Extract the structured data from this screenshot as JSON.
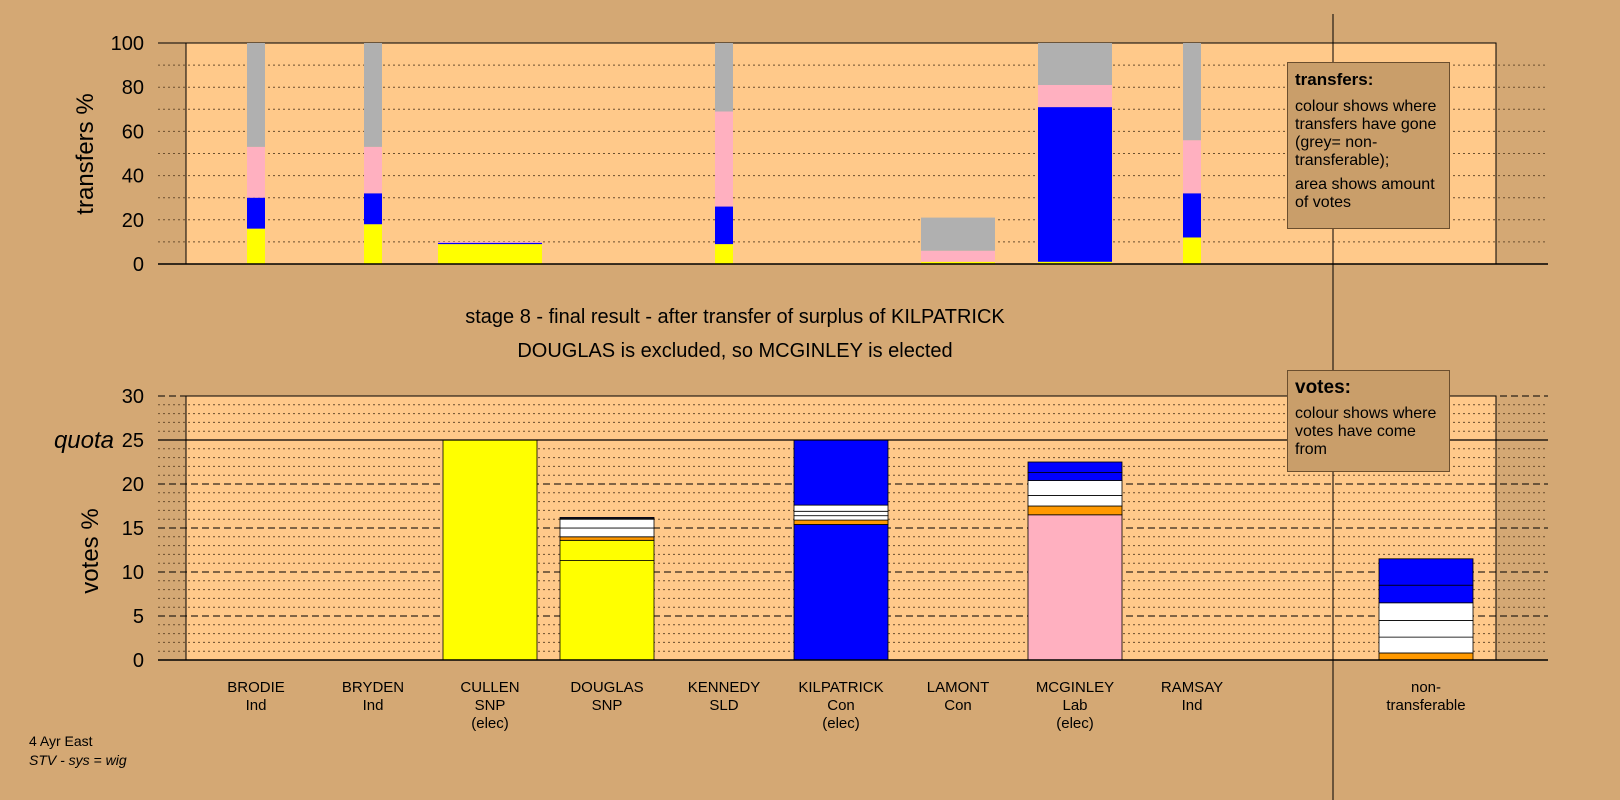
{
  "stage_title": "stage 8 - final result - after transfer of surplus of KILPATRICK",
  "stage_subtitle": "DOUGLAS is excluded, so MCGINLEY is elected",
  "footer": {
    "line1": "4 Ayr East",
    "line2": "STV - sys = wig"
  },
  "legend_transfers": {
    "title": "transfers:",
    "text1": "colour shows where transfers have gone (grey= non-transferable);",
    "text2": "area shows amount of votes"
  },
  "legend_votes": {
    "title": "votes:",
    "text1": "colour shows where votes have come from"
  },
  "colors": {
    "background": "#d4a874",
    "plot": "#ffc98a",
    "SNP": "#ffff00",
    "Con": "#0000ff",
    "Lab": "#ffb0c0",
    "Ind": "#ffffff",
    "SLD": "#ff9900",
    "nontransferable": "#b0b0b0"
  },
  "chart_data": [
    {
      "type": "bar",
      "name": "transfers",
      "ylabel": "transfers %",
      "ylim": [
        0,
        100
      ],
      "yticks": [
        "0",
        "20",
        "40",
        "60",
        "80",
        "100"
      ],
      "categories": [
        "BRODIE",
        "BRYDEN",
        "CULLEN",
        "DOUGLAS",
        "KENNEDY",
        "KILPATRICK",
        "LAMONT",
        "MCGINLEY",
        "RAMSAY"
      ],
      "columns": [
        {
          "candidate": "BRODIE",
          "width": "narrow",
          "segments": [
            {
              "party": "SNP",
              "from": 0,
              "to": 16
            },
            {
              "party": "Con",
              "from": 16,
              "to": 30
            },
            {
              "party": "Lab",
              "from": 30,
              "to": 53
            },
            {
              "party": "nontransferable",
              "from": 53,
              "to": 100
            }
          ]
        },
        {
          "candidate": "BRYDEN",
          "width": "narrow",
          "segments": [
            {
              "party": "SNP",
              "from": 0,
              "to": 18
            },
            {
              "party": "Con",
              "from": 18,
              "to": 32
            },
            {
              "party": "Lab",
              "from": 32,
              "to": 53
            },
            {
              "party": "nontransferable",
              "from": 53,
              "to": 100
            }
          ]
        },
        {
          "candidate": "CULLEN",
          "width": "wide",
          "segments": [
            {
              "party": "SNP",
              "from": 0,
              "to": 9
            },
            {
              "party": "Con",
              "from": 9,
              "to": 9.6
            },
            {
              "party": "Lab",
              "from": 9.6,
              "to": 10
            }
          ]
        },
        {
          "candidate": "KENNEDY",
          "width": "narrow",
          "segments": [
            {
              "party": "SNP",
              "from": 0,
              "to": 9
            },
            {
              "party": "Con",
              "from": 9,
              "to": 26
            },
            {
              "party": "Lab",
              "from": 26,
              "to": 69
            },
            {
              "party": "nontransferable",
              "from": 69,
              "to": 100
            }
          ]
        },
        {
          "candidate": "LAMONT",
          "width": "medium",
          "segments": [
            {
              "party": "SNP",
              "from": 0,
              "to": 1
            },
            {
              "party": "Lab",
              "from": 1,
              "to": 6
            },
            {
              "party": "nontransferable",
              "from": 6,
              "to": 21
            }
          ]
        },
        {
          "candidate": "MCGINLEY",
          "width": "medium",
          "segments": [
            {
              "party": "SNP",
              "from": 0,
              "to": 1
            },
            {
              "party": "Con",
              "from": 1,
              "to": 71
            },
            {
              "party": "Lab",
              "from": 71,
              "to": 81
            },
            {
              "party": "nontransferable",
              "from": 81,
              "to": 100
            }
          ]
        },
        {
          "candidate": "RAMSAY",
          "width": "narrow",
          "segments": [
            {
              "party": "SNP",
              "from": 0,
              "to": 12
            },
            {
              "party": "Con",
              "from": 12,
              "to": 32
            },
            {
              "party": "Lab",
              "from": 32,
              "to": 56
            },
            {
              "party": "nontransferable",
              "from": 56,
              "to": 100
            }
          ]
        }
      ]
    },
    {
      "type": "bar",
      "name": "votes",
      "ylabel": "votes %",
      "ylim": [
        0,
        30
      ],
      "yticks": [
        "0",
        "5",
        "10",
        "15",
        "20",
        "25",
        "30"
      ],
      "quota": 25,
      "quota_label": "quota",
      "categories": [
        "BRODIE",
        "BRYDEN",
        "CULLEN",
        "DOUGLAS",
        "KENNEDY",
        "KILPATRICK",
        "LAMONT",
        "MCGINLEY",
        "RAMSAY",
        "non-transferable"
      ],
      "candidates": [
        {
          "name": "BRODIE",
          "party": "Ind",
          "note": "",
          "segments": []
        },
        {
          "name": "BRYDEN",
          "party": "Ind",
          "note": "",
          "segments": []
        },
        {
          "name": "CULLEN",
          "party": "SNP",
          "note": "(elec)",
          "segments": [
            {
              "c": "SNP",
              "v": 25
            }
          ]
        },
        {
          "name": "DOUGLAS",
          "party": "SNP",
          "note": "",
          "segments": [
            {
              "c": "SNP",
              "v": 11.3
            },
            {
              "c": "SNP",
              "v": 2.3
            },
            {
              "c": "SLD",
              "v": 0.4
            },
            {
              "c": "Ind",
              "v": 1
            },
            {
              "c": "Ind",
              "v": 1
            },
            {
              "c": "Ind",
              "v": 0.1
            },
            {
              "c": "Con",
              "v": 0.1
            }
          ]
        },
        {
          "name": "KENNEDY",
          "party": "SLD",
          "note": "",
          "segments": []
        },
        {
          "name": "KILPATRICK",
          "party": "Con",
          "note": "(elec)",
          "segments": [
            {
              "c": "Con",
              "v": 15.4
            },
            {
              "c": "SLD",
              "v": 0.5
            },
            {
              "c": "Ind",
              "v": 0.5
            },
            {
              "c": "Ind",
              "v": 0.5
            },
            {
              "c": "Ind",
              "v": 0.7
            },
            {
              "c": "Con",
              "v": 7.4
            }
          ]
        },
        {
          "name": "LAMONT",
          "party": "Con",
          "note": "",
          "segments": []
        },
        {
          "name": "MCGINLEY",
          "party": "Lab",
          "note": "(elec)",
          "segments": [
            {
              "c": "Lab",
              "v": 16.5
            },
            {
              "c": "SLD",
              "v": 1
            },
            {
              "c": "Ind",
              "v": 1.2
            },
            {
              "c": "Ind",
              "v": 1.7
            },
            {
              "c": "Con",
              "v": 0.9
            },
            {
              "c": "Con",
              "v": 1.2
            }
          ]
        },
        {
          "name": "RAMSAY",
          "party": "Ind",
          "note": "",
          "segments": []
        },
        {
          "name": "non-transferable",
          "party": "",
          "note": "",
          "segments": [
            {
              "c": "SLD",
              "v": 0.8
            },
            {
              "c": "Ind",
              "v": 1.8
            },
            {
              "c": "Ind",
              "v": 1.9
            },
            {
              "c": "Ind",
              "v": 2
            },
            {
              "c": "Con",
              "v": 2
            },
            {
              "c": "Con",
              "v": 3
            }
          ]
        }
      ]
    }
  ]
}
